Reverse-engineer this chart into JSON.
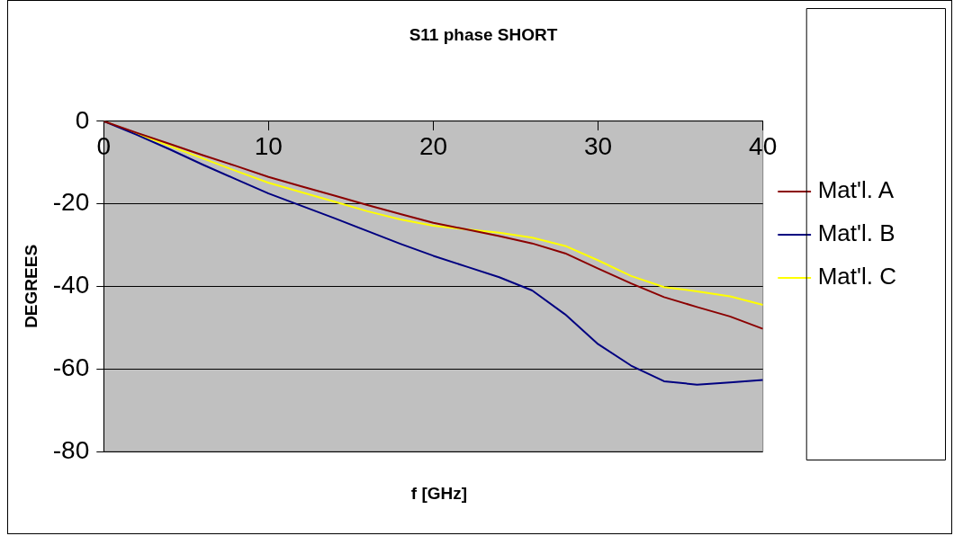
{
  "chart_data": {
    "type": "line",
    "title": "S11 phase SHORT",
    "xlabel": "f [GHz]",
    "ylabel": "DEGREES",
    "x": [
      0,
      2,
      4,
      6,
      8,
      10,
      12,
      14,
      16,
      18,
      20,
      22,
      24,
      26,
      28,
      30,
      32,
      34,
      36,
      38,
      40
    ],
    "series": [
      {
        "name": "Mat'l. A",
        "color": "#8b0000",
        "values": [
          0,
          -2.8,
          -5.5,
          -8.2,
          -10.8,
          -13.5,
          -15.8,
          -18,
          -20.3,
          -22.5,
          -24.6,
          -26.2,
          -27.8,
          -29.6,
          -32,
          -35.7,
          -39.3,
          -42.6,
          -45,
          -47.3,
          -50.3
        ]
      },
      {
        "name": "Mat'l. B",
        "color": "#000080",
        "values": [
          0,
          -3.3,
          -6.8,
          -10.5,
          -14,
          -17.5,
          -20.5,
          -23.5,
          -26.6,
          -29.7,
          -32.6,
          -35.2,
          -37.8,
          -41,
          -46.8,
          -54,
          -59.2,
          -63,
          -63.8,
          -63.3,
          -62.7
        ]
      },
      {
        "name": "Mat'l. C",
        "color": "#ffff00",
        "values": [
          0,
          -3,
          -6,
          -9,
          -12,
          -14.9,
          -17.2,
          -19.5,
          -21.8,
          -23.8,
          -25.3,
          -26.2,
          -27,
          -28.2,
          -30.2,
          -33.7,
          -37.5,
          -40.2,
          -41.2,
          -42.4,
          -44.5
        ]
      }
    ],
    "xlim": [
      0,
      40
    ],
    "xticks": [
      0,
      10,
      20,
      30,
      40
    ],
    "ylim": [
      -80,
      0
    ],
    "yticks": [
      -80,
      -60,
      -40,
      -20,
      0
    ],
    "grid": "y",
    "legend": "right",
    "marker": "none",
    "line_style": "solid"
  }
}
